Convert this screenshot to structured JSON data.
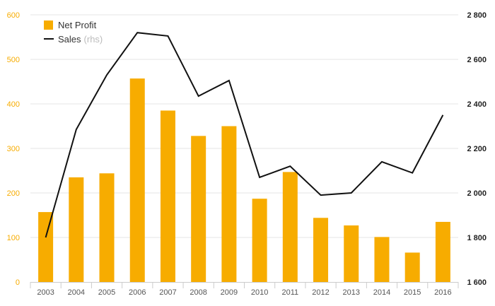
{
  "chart_data": {
    "type": "bar",
    "categories": [
      "2003",
      "2004",
      "2005",
      "2006",
      "2007",
      "2008",
      "2009",
      "2010",
      "2011",
      "2012",
      "2013",
      "2014",
      "2015",
      "2016"
    ],
    "series": [
      {
        "name": "Net Profit",
        "type": "bar",
        "axis": "left",
        "color": "#f7ac00",
        "values": [
          157,
          235,
          244,
          457,
          385,
          328,
          350,
          187,
          247,
          144,
          127,
          101,
          66,
          135
        ]
      },
      {
        "name": "Sales",
        "name_suffix": "(rhs)",
        "type": "line",
        "axis": "right",
        "color": "#111111",
        "values": [
          1800,
          2285,
          2530,
          2720,
          2705,
          2435,
          2505,
          2070,
          2120,
          1990,
          2000,
          2140,
          2090,
          2350
        ]
      }
    ],
    "y_left": {
      "ylim": [
        0,
        600
      ],
      "ticks": [
        "0",
        "100",
        "200",
        "300",
        "400",
        "500",
        "600"
      ],
      "tick_values": [
        0,
        100,
        200,
        300,
        400,
        500,
        600
      ],
      "tick_color": "#f7ac00"
    },
    "y_right": {
      "ylim": [
        1600,
        2800
      ],
      "ticks": [
        "1 600",
        "1 800",
        "2 000",
        "2 200",
        "2 400",
        "2 600",
        "2 800"
      ],
      "tick_values": [
        1600,
        1800,
        2000,
        2200,
        2400,
        2600,
        2800
      ],
      "tick_color": "#222222"
    },
    "grid": true,
    "grid_color": "#e6e6e6",
    "legend_position": "top-left",
    "title": "",
    "xlabel": "",
    "ylabel": ""
  }
}
